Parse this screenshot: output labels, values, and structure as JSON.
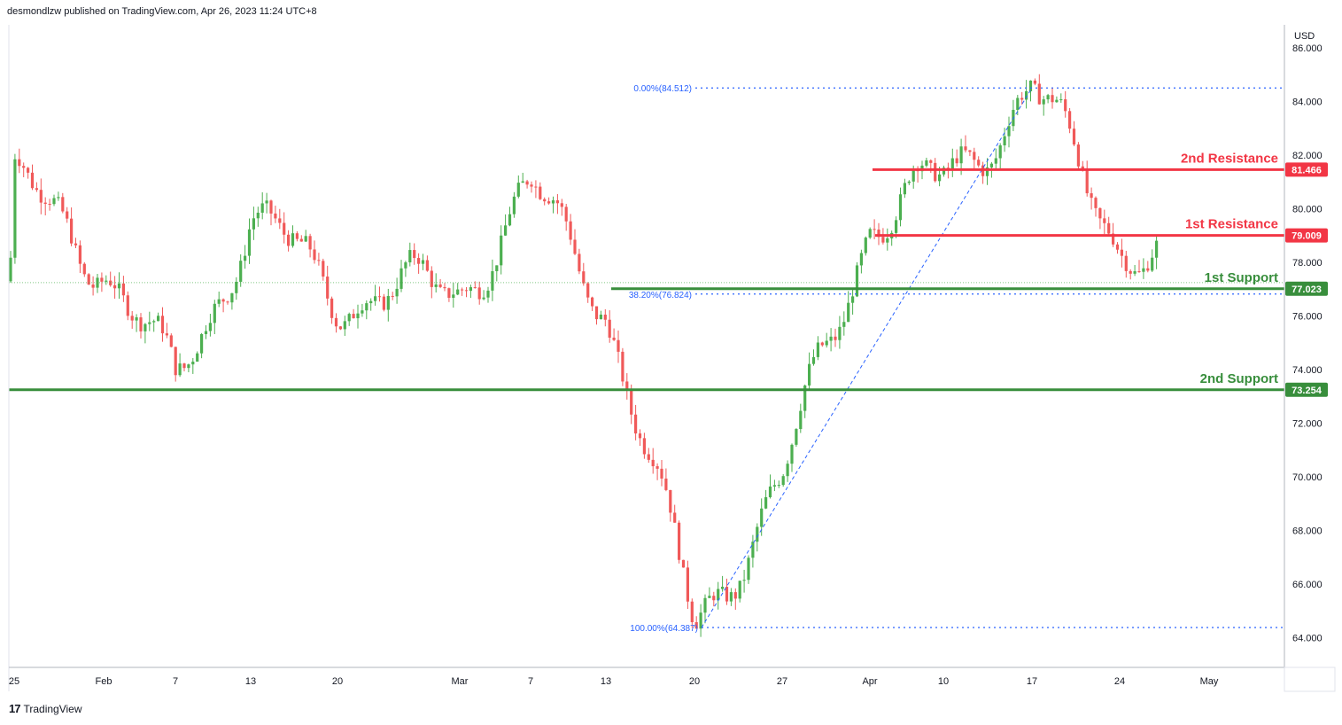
{
  "header": {
    "published": "desmondlzw published on TradingView.com, Apr 26, 2023 11:24 UTC+8"
  },
  "footer": {
    "logo": "17",
    "brand": "TradingView"
  },
  "colors": {
    "resistance": "#f23645",
    "support": "#388e3c",
    "fib": "#2962ff",
    "up": "#26a69a",
    "down": "#ef5350",
    "up_candle": "#4caf50",
    "down_candle": "#f05959"
  },
  "chart_data": {
    "type": "candlestick",
    "currency": "USD",
    "ylim": [
      62.9,
      86.8
    ],
    "y_ticks": [
      "86.000",
      "84.000",
      "82.000",
      "80.000",
      "78.000",
      "76.000",
      "74.000",
      "72.000",
      "70.000",
      "68.000",
      "66.000",
      "64.000"
    ],
    "x_ticks": [
      "25",
      "Feb",
      "7",
      "13",
      "20",
      "Mar",
      "7",
      "13",
      "20",
      "27",
      "Apr",
      "10",
      "17",
      "24",
      "May"
    ],
    "levels": [
      {
        "name": "2nd Resistance",
        "value": 81.466,
        "label": "81.466",
        "kind": "resistance"
      },
      {
        "name": "1st Resistance",
        "value": 79.009,
        "label": "79.009",
        "kind": "resistance"
      },
      {
        "name": "1st Support",
        "value": 77.023,
        "label": "77.023",
        "kind": "support"
      },
      {
        "name": "2nd Support",
        "value": 73.254,
        "label": "73.254",
        "kind": "support"
      }
    ],
    "fib_levels": [
      {
        "label": "0.00%(84.512)",
        "value": 84.512
      },
      {
        "label": "38.20%(76.824)",
        "value": 76.824
      },
      {
        "label": "100.00%(64.387)",
        "value": 64.387
      }
    ],
    "price_path": [
      [
        "25",
        81.0
      ],
      [
        "Feb",
        78.0
      ],
      [
        "7",
        73.4
      ],
      [
        "13",
        79.7
      ],
      [
        "20",
        76.8
      ],
      [
        "Mar",
        77.0
      ],
      [
        "7",
        80.7
      ],
      [
        "13",
        76.5
      ],
      [
        "20",
        64.4
      ],
      [
        "27",
        69.8
      ],
      [
        "Apr",
        79.6
      ],
      [
        "10",
        81.0
      ],
      [
        "17",
        84.5
      ],
      [
        "24",
        78.9
      ],
      [
        "May",
        77.3
      ]
    ]
  }
}
